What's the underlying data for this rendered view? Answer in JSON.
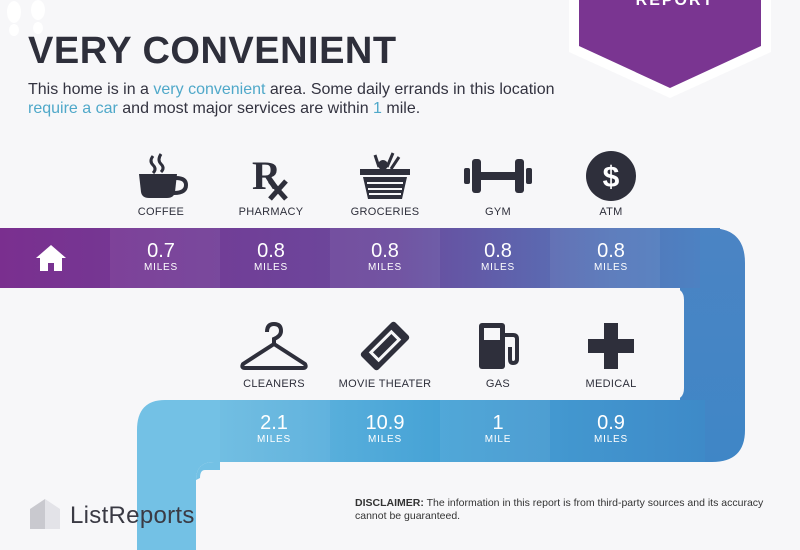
{
  "badge": {
    "label": "REPORT"
  },
  "header": {
    "title": "VERY CONVENIENT",
    "sub_1": "This home is in a ",
    "sub_hl_1": "very convenient",
    "sub_2": "  area. Some daily errands in this location ",
    "sub_hl_2": "require a car",
    "sub_3": " and most major services are within ",
    "sub_hl_3": "1",
    "sub_4": " mile."
  },
  "row1": [
    {
      "label": "COFFEE",
      "value": "0.7",
      "unit": "MILES",
      "icon": "coffee-cup-icon"
    },
    {
      "label": "PHARMACY",
      "value": "0.8",
      "unit": "MILES",
      "icon": "rx-icon"
    },
    {
      "label": "GROCERIES",
      "value": "0.8",
      "unit": "MILES",
      "icon": "grocery-basket-icon"
    },
    {
      "label": "GYM",
      "value": "0.8",
      "unit": "MILES",
      "icon": "dumbbell-icon"
    },
    {
      "label": "ATM",
      "value": "0.8",
      "unit": "MILES",
      "icon": "dollar-coin-icon"
    }
  ],
  "row2": [
    {
      "label": "CLEANERS",
      "value": "2.1",
      "unit": "MILES",
      "icon": "hanger-icon"
    },
    {
      "label": "MOVIE THEATER",
      "value": "10.9",
      "unit": "MILES",
      "icon": "ticket-icon"
    },
    {
      "label": "GAS",
      "value": "1",
      "unit": "MILE",
      "icon": "gas-pump-icon"
    },
    {
      "label": "MEDICAL",
      "value": "0.9",
      "unit": "MILES",
      "icon": "medical-cross-icon"
    }
  ],
  "footer": {
    "brand": "ListReports",
    "disclaimer_label": "DISCLAIMER:",
    "disclaimer_text": " The information in this report is from third-party sources and its accuracy cannot be guaranteed."
  },
  "colors": {
    "purple_dark": "#7b3a92",
    "purple": "#6b4a9e",
    "blue": "#4d7cc0",
    "light_blue": "#74c0e4",
    "ink": "#2e2f3b"
  }
}
